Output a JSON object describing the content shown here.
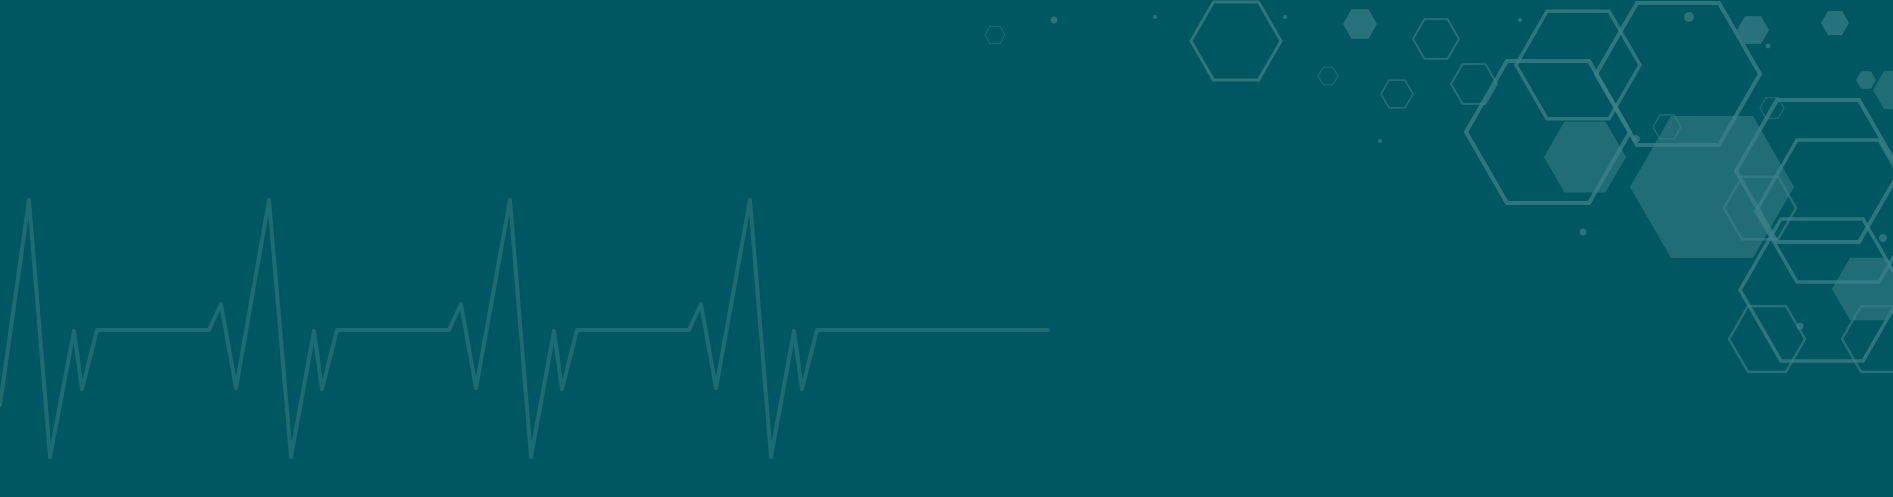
{
  "banner": {
    "background_color": "#005661",
    "pulse_line_color": "#1E6B74",
    "hexagon_outline_color": "#3D8289",
    "hexagon_fill_color": "#3D8289",
    "decoration": [
      "heartbeat-pulse-line",
      "hexagon-cluster"
    ]
  }
}
